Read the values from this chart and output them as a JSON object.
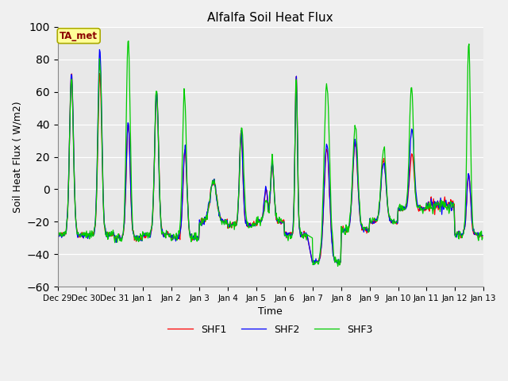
{
  "title": "Alfalfa Soil Heat Flux",
  "xlabel": "Time",
  "ylabel": "Soil Heat Flux ( W/m2)",
  "ylim": [
    -60,
    100
  ],
  "yticks": [
    -60,
    -40,
    -20,
    0,
    20,
    40,
    60,
    80,
    100
  ],
  "annotation_text": "TA_met",
  "annotation_color": "#8B0000",
  "annotation_bg": "#FFFF99",
  "line_colors": {
    "SHF1": "#FF0000",
    "SHF2": "#0000FF",
    "SHF3": "#00CC00"
  },
  "line_width": 0.9,
  "bg_color": "#E8E8E8",
  "fig_bg_color": "#F0F0F0",
  "tick_labels": [
    "Dec 29",
    "Dec 30",
    "Dec 31",
    "Jan 1",
    "Jan 2",
    "Jan 3",
    "Jan 4",
    "Jan 5",
    "Jan 6",
    "Jan 7",
    "Jan 8",
    "Jan 9",
    "Jan 10",
    "Jan 11",
    "Jan 12",
    "Jan 13"
  ]
}
